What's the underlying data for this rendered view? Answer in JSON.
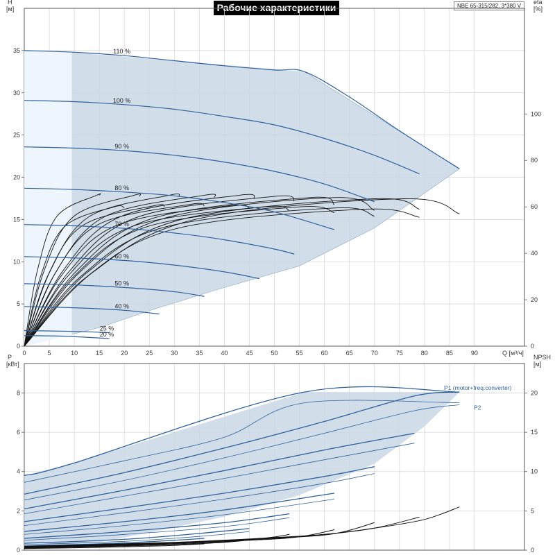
{
  "title": "Рабочие характеристики",
  "model": "NBE 65-315/282, 3*380 V",
  "chart_data": [
    {
      "type": "line",
      "name": "head",
      "xlabel": "Q [м³/ч]",
      "ylabel_left": "H [м]",
      "ylabel_right": "eta [%]",
      "xlim": [
        0,
        100
      ],
      "ylim": [
        0,
        40
      ],
      "ylim_right": [
        0,
        145.5
      ],
      "x_ticks": [
        0,
        5,
        10,
        15,
        20,
        25,
        30,
        35,
        40,
        45,
        50,
        55,
        60,
        65,
        70,
        75,
        80,
        85,
        90
      ],
      "y_ticks": [
        0,
        5,
        10,
        15,
        20,
        25,
        30,
        35
      ],
      "y_ticks_right": [
        0,
        20,
        40,
        60,
        80,
        100
      ],
      "operating_envelope": [
        [
          0,
          35
        ],
        [
          9.5,
          34.8
        ],
        [
          56,
          32.5
        ],
        [
          87,
          21
        ],
        [
          70,
          14
        ],
        [
          55,
          9.5
        ],
        [
          38,
          6.6
        ],
        [
          25,
          4.2
        ],
        [
          15,
          2.2
        ],
        [
          9.5,
          1.4
        ],
        [
          0,
          0
        ]
      ],
      "speed_curves": [
        {
          "label": "110 %",
          "points": [
            [
              0,
              35
            ],
            [
              10,
              34.8
            ],
            [
              20,
              34.4
            ],
            [
              30,
              33.8
            ],
            [
              40,
              33.2
            ],
            [
              50,
              32.7
            ],
            [
              56,
              32.5
            ],
            [
              65,
              29.5
            ],
            [
              75,
              25.5
            ],
            [
              87,
              21
            ]
          ]
        },
        {
          "label": "100 %",
          "points": [
            [
              0,
              29.1
            ],
            [
              10,
              28.95
            ],
            [
              20,
              28.6
            ],
            [
              30,
              28.05
            ],
            [
              40,
              27.2
            ],
            [
              50,
              26.2
            ],
            [
              60,
              24.6
            ],
            [
              70,
              22.6
            ],
            [
              79,
              20.4
            ]
          ]
        },
        {
          "label": "90 %",
          "points": [
            [
              0,
              23.6
            ],
            [
              10,
              23.45
            ],
            [
              20,
              23.15
            ],
            [
              30,
              22.6
            ],
            [
              40,
              21.8
            ],
            [
              50,
              20.7
            ],
            [
              60,
              19.2
            ],
            [
              70,
              17.1
            ]
          ]
        },
        {
          "label": "80 %",
          "points": [
            [
              0,
              18.7
            ],
            [
              10,
              18.55
            ],
            [
              20,
              18.25
            ],
            [
              30,
              17.8
            ],
            [
              40,
              17.0
            ],
            [
              50,
              15.9
            ],
            [
              62,
              13.8
            ]
          ]
        },
        {
          "label": "70 %",
          "points": [
            [
              0,
              14.4
            ],
            [
              10,
              14.25
            ],
            [
              20,
              13.95
            ],
            [
              30,
              13.4
            ],
            [
              40,
              12.6
            ],
            [
              50,
              11.5
            ],
            [
              54,
              10.9
            ]
          ]
        },
        {
          "label": "60 %",
          "points": [
            [
              0,
              10.6
            ],
            [
              10,
              10.45
            ],
            [
              20,
              10.15
            ],
            [
              30,
              9.6
            ],
            [
              40,
              8.8
            ],
            [
              47,
              8.0
            ]
          ]
        },
        {
          "label": "50 %",
          "points": [
            [
              0,
              7.4
            ],
            [
              10,
              7.25
            ],
            [
              20,
              6.95
            ],
            [
              30,
              6.45
            ],
            [
              36,
              5.9
            ]
          ]
        },
        {
          "label": "40 %",
          "points": [
            [
              0,
              4.7
            ],
            [
              10,
              4.55
            ],
            [
              20,
              4.25
            ],
            [
              27,
              3.8
            ]
          ]
        },
        {
          "label": "25 %",
          "points": [
            [
              0,
              1.85
            ],
            [
              10,
              1.75
            ],
            [
              17,
              1.6
            ]
          ]
        },
        {
          "label": "20 %",
          "points": [
            [
              0,
              1.25
            ],
            [
              8,
              1.18
            ],
            [
              17,
              0.9
            ]
          ]
        }
      ],
      "efficiency_curves": [
        {
          "q_end": 15,
          "eta_peak": 65.0,
          "q_peak": 14.5,
          "eta_end": 65.0
        },
        {
          "q_end": 23,
          "eta_peak": 65.0,
          "q_peak": 22,
          "eta_end": 64.5
        },
        {
          "q_end": 31,
          "eta_peak": 65.0,
          "q_peak": 29,
          "eta_end": 64.5
        },
        {
          "q_end": 38,
          "eta_peak": 65.0,
          "q_peak": 36,
          "eta_end": 64.0
        },
        {
          "q_end": 46,
          "eta_peak": 65.0,
          "q_peak": 43,
          "eta_end": 63.5
        },
        {
          "q_end": 54,
          "eta_peak": 64.5,
          "q_peak": 50,
          "eta_end": 62.5
        },
        {
          "q_end": 62,
          "eta_peak": 64.0,
          "q_peak": 57,
          "eta_end": 61.0
        },
        {
          "q_end": 70,
          "eta_peak": 64.0,
          "q_peak": 62,
          "eta_end": 58.5
        },
        {
          "q_end": 79,
          "eta_peak": 63.5,
          "q_peak": 70,
          "eta_end": 59.0
        },
        {
          "q_end": 87,
          "eta_peak": 63.5,
          "q_peak": 76,
          "eta_end": 57.0
        },
        {
          "q_end": 20,
          "eta_peak": 60.0,
          "q_peak": 18,
          "eta_end": 59.5
        },
        {
          "q_end": 28,
          "eta_peak": 60.5,
          "q_peak": 26,
          "eta_end": 60.0
        },
        {
          "q_end": 36,
          "eta_peak": 61.0,
          "q_peak": 33,
          "eta_end": 60.5
        },
        {
          "q_end": 45,
          "eta_peak": 60.5,
          "q_peak": 41,
          "eta_end": 59.5
        },
        {
          "q_end": 53,
          "eta_peak": 60.0,
          "q_peak": 48,
          "eta_end": 58.5
        },
        {
          "q_end": 62,
          "eta_peak": 60.0,
          "q_peak": 55,
          "eta_end": 57.5
        },
        {
          "q_end": 70,
          "eta_peak": 59.5,
          "q_peak": 62,
          "eta_end": 56.0
        },
        {
          "q_end": 79,
          "eta_peak": 59.0,
          "q_peak": 68,
          "eta_end": 55.5
        }
      ]
    },
    {
      "type": "line",
      "name": "power",
      "xlabel": "Q [м³/ч]",
      "ylabel_left": "P [кВт]",
      "ylabel_right": "NPSH [м]",
      "xlim": [
        0,
        100
      ],
      "ylim": [
        0,
        9.5
      ],
      "ylim_right": [
        0,
        23.75
      ],
      "y_ticks": [
        0,
        2,
        4,
        6,
        8
      ],
      "y_ticks_right": [
        0,
        5,
        10,
        15,
        20
      ],
      "power_envelope": [
        [
          0,
          3.8
        ],
        [
          9.5,
          4.4
        ],
        [
          56,
          8.05
        ],
        [
          87,
          8.05
        ],
        [
          80,
          6.3
        ],
        [
          70,
          4.4
        ],
        [
          55,
          2.8
        ],
        [
          40,
          1.7
        ],
        [
          25,
          0.9
        ],
        [
          15,
          0.4
        ],
        [
          9.5,
          0.25
        ],
        [
          0,
          0.15
        ]
      ],
      "p1_label": "P1 (motor+freq.converter)",
      "p2_label": "P2",
      "p1_curves": [
        {
          "points": [
            [
              0,
              3.8
            ],
            [
              9.5,
              4.4
            ],
            [
              56,
              8.05
            ],
            [
              87,
              8.05
            ]
          ]
        },
        {
          "points": [
            [
              0,
              2.85
            ],
            [
              20,
              3.95
            ],
            [
              40,
              5.2
            ],
            [
              60,
              6.55
            ],
            [
              78,
              7.85
            ],
            [
              87,
              8.05
            ]
          ]
        },
        {
          "points": [
            [
              0,
              2.1
            ],
            [
              20,
              3.05
            ],
            [
              40,
              4.05
            ],
            [
              60,
              5.1
            ],
            [
              78,
              5.95
            ]
          ]
        },
        {
          "points": [
            [
              0,
              1.45
            ],
            [
              20,
              2.15
            ],
            [
              40,
              2.9
            ],
            [
              60,
              3.75
            ],
            [
              70,
              4.25
            ]
          ]
        },
        {
          "points": [
            [
              0,
              0.95
            ],
            [
              20,
              1.45
            ],
            [
              40,
              2.05
            ],
            [
              62,
              2.9
            ]
          ]
        },
        {
          "points": [
            [
              0,
              0.6
            ],
            [
              20,
              0.95
            ],
            [
              40,
              1.4
            ],
            [
              53,
              1.85
            ]
          ]
        },
        {
          "points": [
            [
              0,
              0.35
            ],
            [
              20,
              0.55
            ],
            [
              35,
              0.85
            ],
            [
              45,
              1.1
            ]
          ]
        },
        {
          "points": [
            [
              0,
              0.2
            ],
            [
              18,
              0.35
            ],
            [
              30,
              0.5
            ],
            [
              36,
              0.6
            ]
          ]
        }
      ],
      "p2_curves": [
        {
          "points": [
            [
              0,
              3.45
            ],
            [
              20,
              4.55
            ],
            [
              40,
              5.75
            ],
            [
              56,
              7.5
            ],
            [
              87,
              7.5
            ]
          ]
        },
        {
          "points": [
            [
              0,
              2.55
            ],
            [
              20,
              3.55
            ],
            [
              40,
              4.7
            ],
            [
              60,
              5.95
            ],
            [
              78,
              7.1
            ],
            [
              87,
              7.4
            ]
          ]
        },
        {
          "points": [
            [
              0,
              1.85
            ],
            [
              20,
              2.75
            ],
            [
              40,
              3.65
            ],
            [
              60,
              4.6
            ],
            [
              78,
              5.45
            ]
          ]
        },
        {
          "points": [
            [
              0,
              1.25
            ],
            [
              20,
              1.9
            ],
            [
              40,
              2.6
            ],
            [
              60,
              3.4
            ],
            [
              70,
              3.9
            ]
          ]
        },
        {
          "points": [
            [
              0,
              0.8
            ],
            [
              20,
              1.25
            ],
            [
              40,
              1.8
            ],
            [
              62,
              2.6
            ]
          ]
        },
        {
          "points": [
            [
              0,
              0.5
            ],
            [
              20,
              0.8
            ],
            [
              40,
              1.2
            ],
            [
              53,
              1.65
            ]
          ]
        },
        {
          "points": [
            [
              0,
              0.28
            ],
            [
              20,
              0.45
            ],
            [
              35,
              0.7
            ],
            [
              45,
              0.95
            ]
          ]
        }
      ],
      "npsh_curves": [
        {
          "points": [
            [
              0,
              0.5
            ],
            [
              30,
              1.0
            ],
            [
              50,
              1.6
            ],
            [
              60,
              2.0
            ],
            [
              70,
              2.8
            ],
            [
              80,
              3.9
            ],
            [
              87,
              5.5
            ]
          ]
        },
        {
          "points": [
            [
              0,
              0.45
            ],
            [
              30,
              0.95
            ],
            [
              50,
              1.55
            ],
            [
              60,
              2.0
            ],
            [
              70,
              2.8
            ],
            [
              79,
              4.2
            ]
          ]
        },
        {
          "points": [
            [
              0,
              0.4
            ],
            [
              30,
              0.9
            ],
            [
              50,
              1.5
            ],
            [
              62,
              2.1
            ],
            [
              70,
              3.5
            ]
          ]
        },
        {
          "points": [
            [
              0,
              0.35
            ],
            [
              25,
              0.75
            ],
            [
              45,
              1.25
            ],
            [
              55,
              1.7
            ],
            [
              62,
              2.6
            ]
          ]
        },
        {
          "points": [
            [
              0,
              0.3
            ],
            [
              20,
              0.6
            ],
            [
              40,
              1.05
            ],
            [
              49,
              1.6
            ],
            [
              53,
              2.0
            ]
          ]
        },
        {
          "points": [
            [
              0,
              0.25
            ],
            [
              15,
              0.45
            ],
            [
              30,
              0.7
            ],
            [
              40,
              1.0
            ],
            [
              45,
              1.3
            ]
          ]
        },
        {
          "points": [
            [
              0,
              0.2
            ],
            [
              15,
              0.35
            ],
            [
              28,
              0.55
            ],
            [
              36,
              0.8
            ]
          ]
        }
      ]
    }
  ]
}
